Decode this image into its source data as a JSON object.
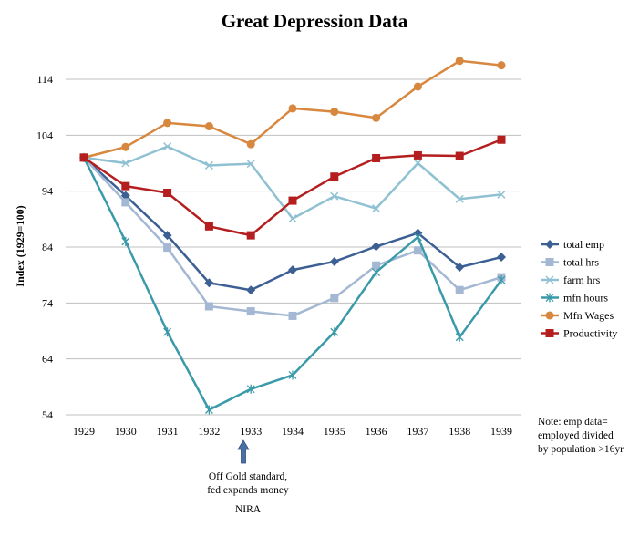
{
  "chart_data": {
    "type": "line",
    "title": "Great Depression Data",
    "xlabel": "",
    "ylabel": "Index (1929=100)",
    "categories": [
      "1929",
      "1930",
      "1931",
      "1932",
      "1933",
      "1934",
      "1935",
      "1936",
      "1937",
      "1938",
      "1939"
    ],
    "yticks": [
      54,
      64,
      74,
      84,
      94,
      104,
      114
    ],
    "ylim": [
      54,
      118
    ],
    "grid": true,
    "legend_position": "right",
    "series": [
      {
        "name": "total emp",
        "color": "#3c5f94",
        "marker": "diamond",
        "values": [
          100,
          93.2,
          86.1,
          77.6,
          76.3,
          79.9,
          81.4,
          84.1,
          86.5,
          80.4,
          82.2
        ]
      },
      {
        "name": "total hrs",
        "color": "#a4b8d4",
        "marker": "square",
        "values": [
          100,
          92.0,
          83.9,
          73.4,
          72.5,
          71.7,
          74.9,
          80.7,
          83.4,
          76.3,
          78.6
        ]
      },
      {
        "name": "farm hrs",
        "color": "#8fc1d2",
        "marker": "x",
        "values": [
          100,
          99.0,
          102.0,
          98.6,
          98.9,
          89.1,
          93.1,
          90.9,
          99.0,
          92.6,
          93.4
        ]
      },
      {
        "name": "mfn hours",
        "color": "#3a9aa9",
        "marker": "star",
        "values": [
          100,
          85.0,
          68.8,
          54.9,
          58.6,
          61.1,
          68.8,
          79.5,
          85.8,
          67.9,
          78.1
        ]
      },
      {
        "name": "Mfn Wages",
        "color": "#d8873f",
        "marker": "circle",
        "values": [
          100,
          101.9,
          106.2,
          105.6,
          102.4,
          108.8,
          108.2,
          107.1,
          112.7,
          117.3,
          116.5
        ]
      },
      {
        "name": "Productivity",
        "color": "#b41e1e",
        "marker": "square",
        "values": [
          100,
          94.9,
          93.7,
          87.7,
          86.1,
          92.3,
          96.6,
          99.9,
          100.4,
          100.3,
          103.2
        ]
      }
    ],
    "annotations": {
      "arrow_at": "1933",
      "lines": [
        "Off Gold standard,",
        "fed expands money"
      ],
      "second": "NIRA"
    },
    "note": "Note: emp data= employed divided by population >16yr"
  }
}
